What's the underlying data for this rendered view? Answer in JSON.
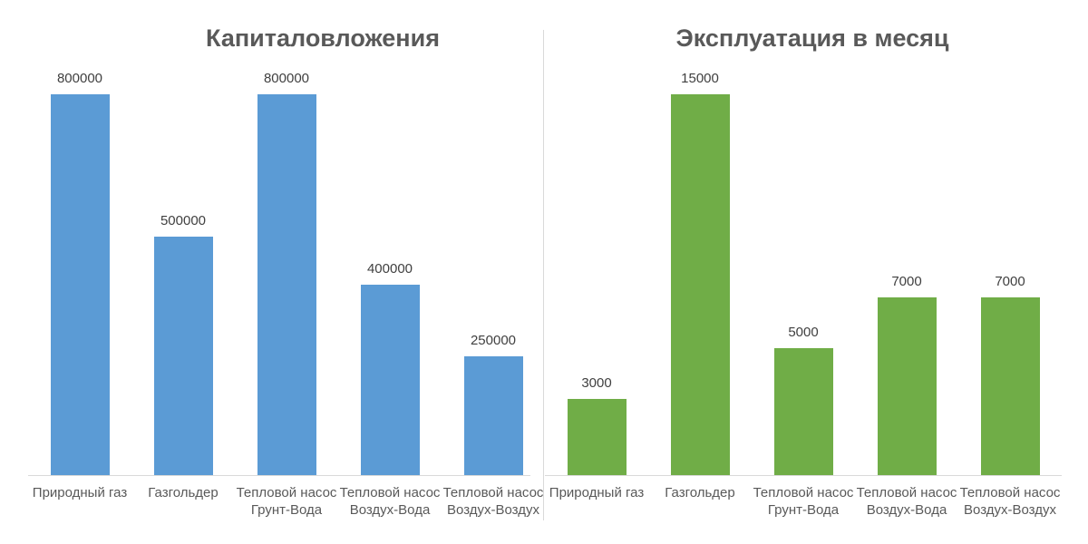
{
  "chart_data": [
    {
      "type": "bar",
      "title": "Капиталовложения",
      "categories": [
        "Природный газ",
        "Газгольдер",
        "Тепловой насос Грунт-Вода",
        "Тепловой насос Воздух-Вода",
        "Тепловой насос Воздух-Воздух"
      ],
      "values": [
        800000,
        500000,
        800000,
        400000,
        250000
      ],
      "data_labels": [
        "800000",
        "500000",
        "800000",
        "400000",
        "250000"
      ],
      "bar_color": "#5B9BD5",
      "xlabel": "",
      "ylabel": "",
      "ylim": [
        0,
        800000
      ],
      "grid": false,
      "legend": "none",
      "data_labels_position": "above-bar"
    },
    {
      "type": "bar",
      "title": "Эксплуатация в месяц",
      "categories": [
        "Природный газ",
        "Газгольдер",
        "Тепловой насос Грунт-Вода",
        "Тепловой насос Воздух-Вода",
        "Тепловой насос Воздух-Воздух"
      ],
      "values": [
        3000,
        15000,
        5000,
        7000,
        7000
      ],
      "data_labels": [
        "3000",
        "15000",
        "5000",
        "7000",
        "7000"
      ],
      "bar_color": "#70AD47",
      "xlabel": "",
      "ylabel": "",
      "ylim": [
        0,
        15000
      ],
      "grid": false,
      "legend": "none",
      "data_labels_position": "above-bar"
    }
  ],
  "colors": {
    "left_bar": "#5B9BD5",
    "right_bar": "#70AD47",
    "title_text": "#595959",
    "data_label_text": "#404040",
    "category_label_text": "#595959",
    "axis_line": "#d9d9d9",
    "panel_divider": "#d9d9d9",
    "background": "#ffffff"
  }
}
